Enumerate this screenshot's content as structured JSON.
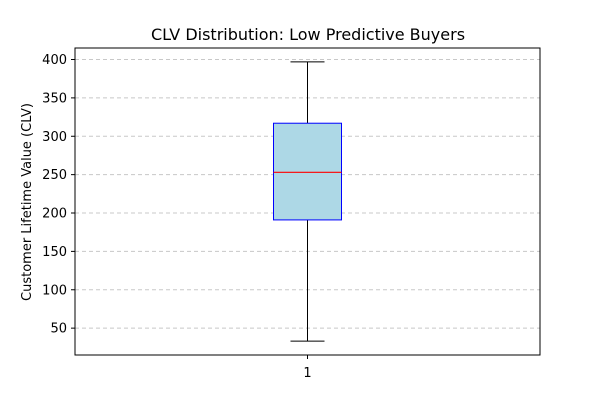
{
  "chart_data": {
    "type": "box",
    "title": "CLV Distribution: Low Predictive Buyers",
    "xlabel": "",
    "ylabel": "Customer Lifetime Value (CLV)",
    "categories": [
      "1"
    ],
    "boxes": [
      {
        "category": "1",
        "min": 33,
        "q1": 191,
        "median": 253,
        "q3": 317,
        "max": 397
      }
    ],
    "y_ticks": [
      50,
      100,
      150,
      200,
      250,
      300,
      350,
      400
    ],
    "ylim": [
      15,
      415
    ],
    "grid": {
      "y": true,
      "style": "dashed"
    },
    "colors": {
      "box_fill": "#add8e6",
      "box_edge": "#0000ff",
      "median": "#ff0000",
      "whisker": "#000000",
      "grid": "#c8c8c8"
    }
  }
}
